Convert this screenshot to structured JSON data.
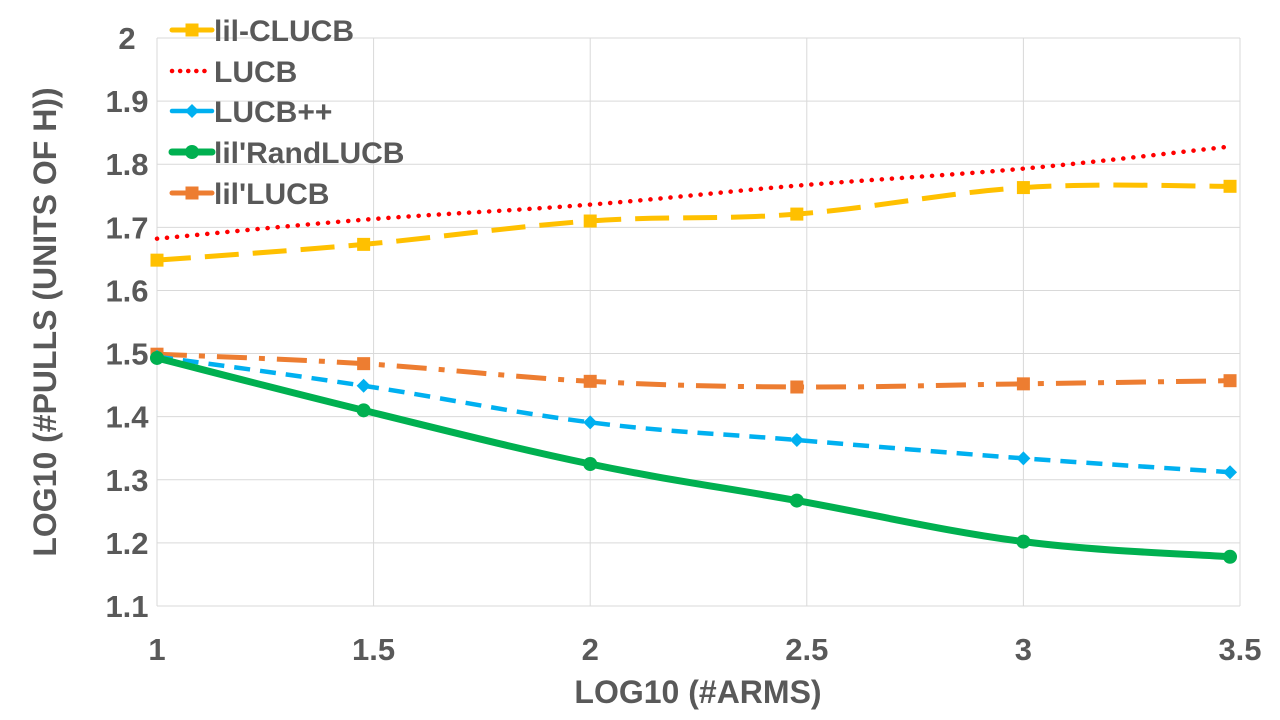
{
  "chart_data": {
    "type": "line",
    "title": "",
    "xlabel": "LOG10 (#ARMS)",
    "ylabel": "LOG10 (#PULLS (UNITS OF H))",
    "xlim": [
      1,
      3.5
    ],
    "ylim": [
      1.1,
      2.0
    ],
    "x_ticks": [
      "1",
      "1.5",
      "2",
      "2.5",
      "3",
      "3.5"
    ],
    "y_ticks": [
      "1.1",
      "1.2",
      "1.3",
      "1.4",
      "1.5",
      "1.6",
      "1.7",
      "1.8",
      "1.9",
      "2"
    ],
    "grid": true,
    "legend_position": "top-left",
    "series": [
      {
        "name": "lil-CLUCB",
        "color": "#ffc000",
        "dash": "long-dash",
        "marker": "square",
        "x": [
          1,
          1.477,
          2,
          2.477,
          3,
          3.477
        ],
        "y": [
          1.648,
          1.673,
          1.71,
          1.721,
          1.763,
          1.765
        ]
      },
      {
        "name": "LUCB",
        "color": "#ff0000",
        "dash": "dotted",
        "marker": "none",
        "x": [
          1,
          1.477,
          2,
          2.477,
          3,
          3.477
        ],
        "y": [
          1.682,
          1.712,
          1.736,
          1.766,
          1.793,
          1.828
        ]
      },
      {
        "name": "LUCB++",
        "color": "#00b0f0",
        "dash": "dash",
        "marker": "diamond",
        "x": [
          1,
          1.477,
          2,
          2.477,
          3,
          3.477
        ],
        "y": [
          1.495,
          1.449,
          1.391,
          1.363,
          1.334,
          1.312
        ]
      },
      {
        "name": "lil'RandLUCB",
        "color": "#00b050",
        "dash": "solid",
        "marker": "circle",
        "x": [
          1,
          1.477,
          2,
          2.477,
          3,
          3.477
        ],
        "y": [
          1.493,
          1.41,
          1.325,
          1.267,
          1.202,
          1.178
        ]
      },
      {
        "name": "lil'LUCB",
        "color": "#ed7d31",
        "dash": "dash-dot",
        "marker": "square",
        "x": [
          1,
          1.477,
          2,
          2.477,
          3,
          3.477
        ],
        "y": [
          1.499,
          1.484,
          1.456,
          1.447,
          1.452,
          1.457
        ]
      }
    ]
  }
}
